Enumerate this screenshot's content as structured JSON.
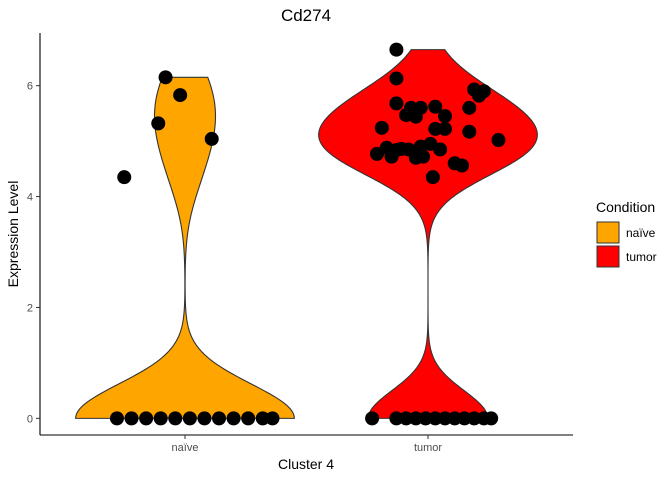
{
  "chart_data": {
    "type": "violin",
    "title": "Cd274",
    "xlabel": "Cluster 4",
    "ylabel": "Expression Level",
    "categories": [
      "naïve",
      "tumor"
    ],
    "ylim": [
      -0.3,
      6.95
    ],
    "yticks": [
      0,
      2,
      4,
      6
    ],
    "grid": false,
    "legend": {
      "title": "Condition",
      "placement": "right",
      "entries": [
        {
          "label": "naïve",
          "color": "#FFA500"
        },
        {
          "label": "tumor",
          "color": "#FF0000"
        }
      ]
    },
    "series": [
      {
        "name": "naïve",
        "color": "#FFA500",
        "points": [
          {
            "x": -0.28,
            "y": 0
          },
          {
            "x": -0.22,
            "y": 0
          },
          {
            "x": -0.16,
            "y": 0
          },
          {
            "x": -0.1,
            "y": 0
          },
          {
            "x": -0.04,
            "y": 0
          },
          {
            "x": 0.02,
            "y": 0
          },
          {
            "x": 0.08,
            "y": 0
          },
          {
            "x": 0.14,
            "y": 0
          },
          {
            "x": 0.2,
            "y": 0
          },
          {
            "x": 0.26,
            "y": 0
          },
          {
            "x": 0.32,
            "y": 0
          },
          {
            "x": 0.36,
            "y": 0
          },
          {
            "x": -0.25,
            "y": 4.35
          },
          {
            "x": -0.11,
            "y": 5.32
          },
          {
            "x": -0.08,
            "y": 6.15
          },
          {
            "x": -0.02,
            "y": 5.83
          },
          {
            "x": 0.11,
            "y": 5.04
          }
        ]
      },
      {
        "name": "tumor",
        "color": "#FF0000",
        "points": [
          {
            "x": -0.23,
            "y": 0
          },
          {
            "x": -0.13,
            "y": 0
          },
          {
            "x": -0.09,
            "y": 0
          },
          {
            "x": -0.05,
            "y": 0
          },
          {
            "x": -0.01,
            "y": 0
          },
          {
            "x": 0.03,
            "y": 0
          },
          {
            "x": 0.07,
            "y": 0
          },
          {
            "x": 0.11,
            "y": 0
          },
          {
            "x": 0.15,
            "y": 0
          },
          {
            "x": 0.19,
            "y": 0
          },
          {
            "x": 0.23,
            "y": 0
          },
          {
            "x": 0.26,
            "y": 0
          },
          {
            "x": -0.13,
            "y": 6.65
          },
          {
            "x": -0.13,
            "y": 6.13
          },
          {
            "x": 0.19,
            "y": 5.93
          },
          {
            "x": 0.23,
            "y": 5.9
          },
          {
            "x": 0.21,
            "y": 5.82
          },
          {
            "x": -0.13,
            "y": 5.68
          },
          {
            "x": -0.07,
            "y": 5.6
          },
          {
            "x": -0.03,
            "y": 5.6
          },
          {
            "x": 0.03,
            "y": 5.62
          },
          {
            "x": 0.17,
            "y": 5.6
          },
          {
            "x": -0.09,
            "y": 5.47
          },
          {
            "x": -0.05,
            "y": 5.44
          },
          {
            "x": 0.07,
            "y": 5.45
          },
          {
            "x": -0.19,
            "y": 5.24
          },
          {
            "x": 0.03,
            "y": 5.22
          },
          {
            "x": 0.07,
            "y": 5.22
          },
          {
            "x": 0.17,
            "y": 5.17
          },
          {
            "x": 0.29,
            "y": 5.02
          },
          {
            "x": 0.01,
            "y": 4.95
          },
          {
            "x": -0.17,
            "y": 4.88
          },
          {
            "x": -0.13,
            "y": 4.84
          },
          {
            "x": -0.11,
            "y": 4.86
          },
          {
            "x": -0.08,
            "y": 4.85
          },
          {
            "x": -0.03,
            "y": 4.9
          },
          {
            "x": 0.05,
            "y": 4.85
          },
          {
            "x": -0.21,
            "y": 4.77
          },
          {
            "x": -0.15,
            "y": 4.72
          },
          {
            "x": -0.05,
            "y": 4.7
          },
          {
            "x": -0.02,
            "y": 4.72
          },
          {
            "x": 0.11,
            "y": 4.6
          },
          {
            "x": 0.14,
            "y": 4.56
          },
          {
            "x": 0.02,
            "y": 4.35
          }
        ]
      }
    ]
  }
}
